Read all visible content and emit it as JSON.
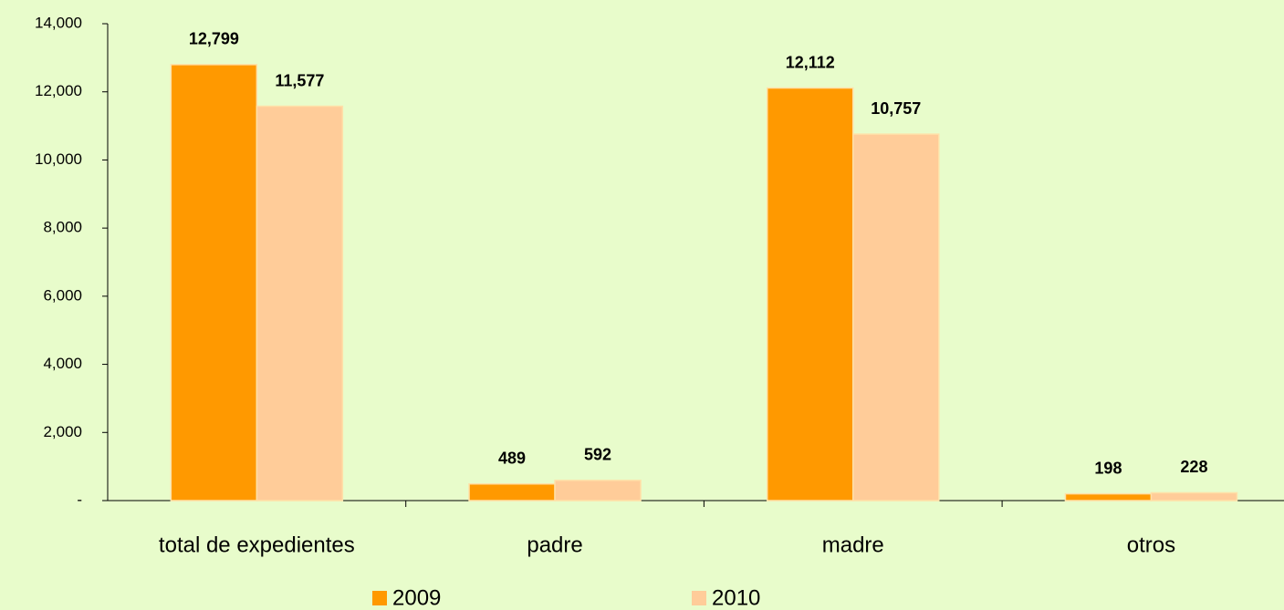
{
  "chart_data": {
    "type": "bar",
    "categories": [
      "total de expedientes",
      "padre",
      "madre",
      "otros"
    ],
    "series": [
      {
        "name": "2009",
        "color": "#ff9900",
        "values": [
          12799,
          489,
          12112,
          198
        ],
        "value_labels": [
          "12,799",
          "489",
          "12,112",
          "198"
        ]
      },
      {
        "name": "2010",
        "color": "#ffcc99",
        "values": [
          11577,
          592,
          10757,
          228
        ],
        "value_labels": [
          "11,577",
          "592",
          "10,757",
          "228"
        ]
      }
    ],
    "ylim": [
      0,
      14000
    ],
    "yticks": [
      {
        "value": 0,
        "label": "-"
      },
      {
        "value": 2000,
        "label": "2,000"
      },
      {
        "value": 4000,
        "label": "4,000"
      },
      {
        "value": 6000,
        "label": "6,000"
      },
      {
        "value": 8000,
        "label": "8,000"
      },
      {
        "value": 10000,
        "label": "10,000"
      },
      {
        "value": 12000,
        "label": "12,000"
      },
      {
        "value": 14000,
        "label": "14,000"
      }
    ],
    "grid": false,
    "legend": "bottom"
  }
}
